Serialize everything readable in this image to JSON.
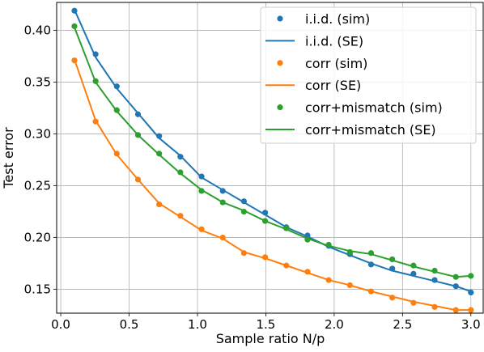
{
  "chart_data": {
    "type": "line",
    "xlabel": "Sample ratio N/p",
    "ylabel": "Test error",
    "xlim": [
      -0.03,
      3.09
    ],
    "ylim": [
      0.127,
      0.427
    ],
    "x_ticks": [
      0.0,
      0.5,
      1.0,
      1.5,
      2.0,
      2.5,
      3.0
    ],
    "x_tick_labels": [
      "0.0",
      "0.5",
      "1.0",
      "1.5",
      "2.0",
      "2.5",
      "3.0"
    ],
    "y_ticks": [
      0.15,
      0.2,
      0.25,
      0.3,
      0.35,
      0.4
    ],
    "y_tick_labels": [
      "0.15",
      "0.20",
      "0.25",
      "0.30",
      "0.35",
      "0.40"
    ],
    "grid": true,
    "legend_position": "top-right",
    "x": [
      0.1,
      0.255,
      0.41,
      0.565,
      0.72,
      0.875,
      1.03,
      1.185,
      1.34,
      1.495,
      1.65,
      1.805,
      1.96,
      2.115,
      2.27,
      2.425,
      2.58,
      2.735,
      2.89,
      3.0
    ],
    "series": [
      {
        "name": "i.i.d.",
        "color": "#1f77b4",
        "sim_label": "i.i.d. (sim)",
        "se_label": "i.i.d. (SE)",
        "sim": [
          0.419,
          0.377,
          0.346,
          0.319,
          0.298,
          0.278,
          0.259,
          0.245,
          0.235,
          0.224,
          0.21,
          0.202,
          0.192,
          0.184,
          0.174,
          0.17,
          0.165,
          0.159,
          0.153,
          0.147
        ],
        "se": [
          0.42,
          0.374,
          0.344,
          0.32,
          0.296,
          0.279,
          0.258,
          0.246,
          0.234,
          0.222,
          0.21,
          0.201,
          0.191,
          0.183,
          0.175,
          0.168,
          0.163,
          0.158,
          0.153,
          0.148
        ]
      },
      {
        "name": "corr",
        "color": "#ff7f0e",
        "sim_label": "corr (sim)",
        "se_label": "corr (SE)",
        "sim": [
          0.371,
          0.312,
          0.281,
          0.256,
          0.232,
          0.221,
          0.208,
          0.2,
          0.185,
          0.181,
          0.173,
          0.167,
          0.159,
          0.154,
          0.148,
          0.142,
          0.137,
          0.133,
          0.13,
          0.13
        ],
        "se": [
          0.372,
          0.313,
          0.28,
          0.256,
          0.233,
          0.22,
          0.207,
          0.199,
          0.186,
          0.18,
          0.173,
          0.166,
          0.159,
          0.154,
          0.148,
          0.143,
          0.138,
          0.134,
          0.13,
          0.13
        ]
      },
      {
        "name": "corr+mismatch",
        "color": "#2ca02c",
        "sim_label": "corr+mismatch (sim)",
        "se_label": "corr+mismatch (SE)",
        "sim": [
          0.404,
          0.351,
          0.323,
          0.299,
          0.281,
          0.263,
          0.245,
          0.234,
          0.225,
          0.216,
          0.209,
          0.198,
          0.193,
          0.186,
          0.185,
          0.179,
          0.173,
          0.168,
          0.162,
          0.163
        ],
        "se": [
          0.403,
          0.35,
          0.322,
          0.299,
          0.28,
          0.262,
          0.246,
          0.234,
          0.226,
          0.216,
          0.208,
          0.199,
          0.192,
          0.187,
          0.184,
          0.178,
          0.172,
          0.167,
          0.162,
          0.163
        ]
      }
    ]
  }
}
